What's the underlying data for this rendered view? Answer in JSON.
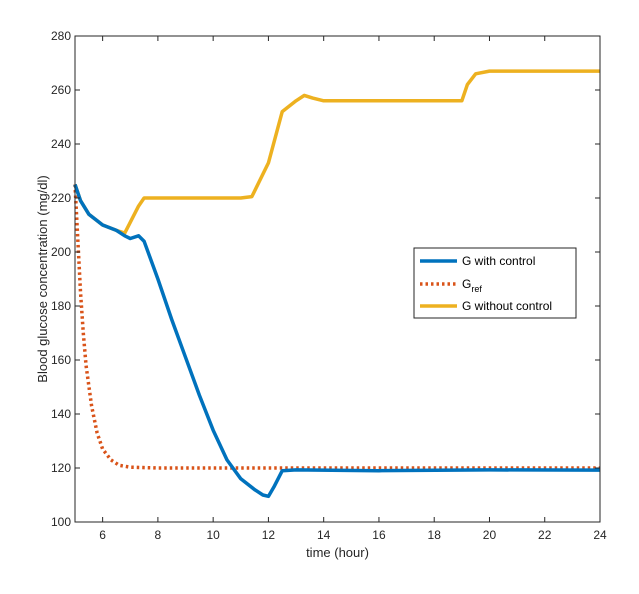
{
  "chart_data": {
    "type": "line",
    "xlabel": "time (hour)",
    "ylabel": "Blood glucose concentration (mg/dl)",
    "xlim": [
      5,
      24
    ],
    "ylim": [
      100,
      280
    ],
    "xticks": [
      6,
      8,
      10,
      12,
      14,
      16,
      18,
      20,
      22,
      24
    ],
    "yticks": [
      100,
      120,
      140,
      160,
      180,
      200,
      220,
      240,
      260,
      280
    ],
    "grid": false,
    "legend_position": "right",
    "series": [
      {
        "name": "G with control",
        "color": "#0072BD",
        "style": "solid",
        "points": [
          [
            5,
            225
          ],
          [
            5.2,
            219
          ],
          [
            5.5,
            214
          ],
          [
            6,
            210
          ],
          [
            6.5,
            208
          ],
          [
            6.8,
            206
          ],
          [
            7,
            205
          ],
          [
            7.3,
            206
          ],
          [
            7.5,
            204
          ],
          [
            8,
            190
          ],
          [
            8.5,
            175
          ],
          [
            9,
            161
          ],
          [
            9.5,
            147
          ],
          [
            10,
            134
          ],
          [
            10.5,
            123
          ],
          [
            11,
            116
          ],
          [
            11.5,
            112
          ],
          [
            11.8,
            110
          ],
          [
            12,
            109.5
          ],
          [
            12.2,
            113
          ],
          [
            12.5,
            119
          ],
          [
            13,
            119.3
          ],
          [
            16,
            119
          ],
          [
            20,
            119.3
          ],
          [
            24,
            119.2
          ]
        ]
      },
      {
        "name": "G",
        "name_sub": "ref",
        "color": "#D95319",
        "style": "dotted",
        "points": [
          [
            5,
            225
          ],
          [
            5.1,
            205
          ],
          [
            5.2,
            185
          ],
          [
            5.3,
            170
          ],
          [
            5.4,
            158
          ],
          [
            5.6,
            143
          ],
          [
            5.8,
            133
          ],
          [
            6,
            127
          ],
          [
            6.3,
            123
          ],
          [
            6.6,
            121
          ],
          [
            7,
            120.3
          ],
          [
            8,
            120
          ],
          [
            24,
            120
          ]
        ]
      },
      {
        "name": "G without control",
        "color": "#EDB120",
        "style": "solid",
        "points": [
          [
            5,
            225
          ],
          [
            5.2,
            219
          ],
          [
            5.5,
            214
          ],
          [
            6,
            210
          ],
          [
            6.5,
            208
          ],
          [
            6.8,
            207
          ],
          [
            7,
            211
          ],
          [
            7.3,
            217
          ],
          [
            7.5,
            220
          ],
          [
            8,
            220
          ],
          [
            11,
            220
          ],
          [
            11.4,
            220.5
          ],
          [
            12,
            233
          ],
          [
            12.5,
            252
          ],
          [
            13,
            256
          ],
          [
            13.3,
            258
          ],
          [
            13.6,
            257
          ],
          [
            14,
            256
          ],
          [
            16,
            256
          ],
          [
            18,
            256
          ],
          [
            19,
            256
          ],
          [
            19.2,
            262
          ],
          [
            19.5,
            266
          ],
          [
            20,
            267
          ],
          [
            24,
            267
          ]
        ]
      }
    ]
  }
}
